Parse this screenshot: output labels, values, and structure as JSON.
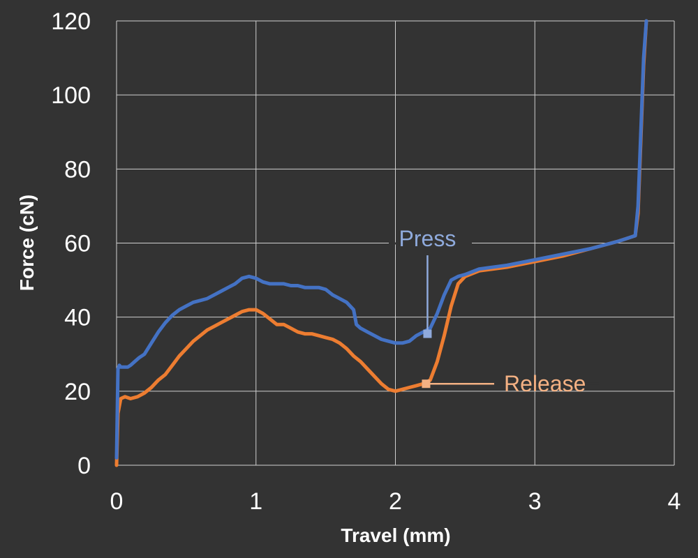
{
  "chart_data": {
    "type": "line",
    "title": "",
    "xlabel": "Travel (mm)",
    "ylabel": "Force (cN)",
    "xlim": [
      0,
      4
    ],
    "ylim": [
      0,
      120
    ],
    "xticks": [
      0,
      1,
      2,
      3,
      4
    ],
    "yticks": [
      0,
      20,
      40,
      60,
      80,
      100,
      120
    ],
    "grid": true,
    "background": "#333333",
    "series": [
      {
        "name": "Press",
        "color": "#4472C4",
        "x": [
          0,
          0.01,
          0.02,
          0.03,
          0.05,
          0.08,
          0.1,
          0.13,
          0.16,
          0.2,
          0.25,
          0.3,
          0.35,
          0.4,
          0.45,
          0.5,
          0.55,
          0.6,
          0.65,
          0.7,
          0.75,
          0.8,
          0.85,
          0.9,
          0.95,
          1.0,
          1.05,
          1.1,
          1.15,
          1.2,
          1.25,
          1.3,
          1.35,
          1.4,
          1.45,
          1.5,
          1.55,
          1.6,
          1.65,
          1.7,
          1.72,
          1.75,
          1.8,
          1.85,
          1.9,
          1.95,
          2.0,
          2.05,
          2.1,
          2.15,
          2.2,
          2.25,
          2.3,
          2.35,
          2.4,
          2.45,
          2.5,
          2.6,
          2.8,
          3.0,
          3.2,
          3.4,
          3.6,
          3.72,
          3.74,
          3.76,
          3.78,
          3.8
        ],
        "values": [
          2,
          26,
          27,
          26.5,
          26.5,
          26.5,
          27,
          28,
          29,
          30,
          33,
          36,
          38.5,
          40.5,
          42,
          43,
          44,
          44.5,
          45,
          46,
          47,
          48,
          49,
          50.5,
          51,
          50.5,
          49.5,
          49,
          49,
          49,
          48.5,
          48.5,
          48,
          48,
          48,
          47.5,
          46,
          45,
          44,
          42,
          38,
          37,
          36,
          35,
          34,
          33.5,
          33,
          33,
          33.5,
          35,
          36,
          37,
          41,
          46,
          50,
          51,
          51.5,
          53,
          54,
          55.5,
          57,
          58.5,
          60.5,
          62,
          70,
          90,
          110,
          120
        ]
      },
      {
        "name": "Release",
        "color": "#ED7D31",
        "x": [
          0,
          0.01,
          0.03,
          0.06,
          0.1,
          0.15,
          0.2,
          0.25,
          0.3,
          0.35,
          0.4,
          0.45,
          0.5,
          0.55,
          0.6,
          0.65,
          0.7,
          0.75,
          0.8,
          0.85,
          0.9,
          0.95,
          1.0,
          1.05,
          1.1,
          1.15,
          1.2,
          1.25,
          1.3,
          1.35,
          1.4,
          1.45,
          1.5,
          1.55,
          1.6,
          1.65,
          1.7,
          1.75,
          1.8,
          1.85,
          1.9,
          1.95,
          2.0,
          2.05,
          2.1,
          2.15,
          2.2,
          2.25,
          2.3,
          2.35,
          2.4,
          2.45,
          2.5,
          2.6,
          2.8,
          3.0,
          3.2,
          3.4,
          3.6,
          3.72,
          3.74,
          3.76,
          3.78,
          3.8
        ],
        "values": [
          0,
          14,
          18,
          18.5,
          18,
          18.5,
          19.5,
          21,
          23,
          24.5,
          27,
          29.5,
          31.5,
          33.5,
          35,
          36.5,
          37.5,
          38.5,
          39.5,
          40.5,
          41.5,
          42,
          42,
          41,
          39.5,
          38,
          38,
          37,
          36,
          35.5,
          35.5,
          35,
          34.5,
          34,
          33,
          31.5,
          29.5,
          28,
          26,
          24,
          22,
          20.5,
          20,
          20.5,
          21,
          21.5,
          22,
          23,
          28,
          35,
          43,
          49,
          51,
          52.5,
          53.5,
          55,
          56.5,
          58.5,
          60.5,
          62,
          68,
          88,
          108,
          120
        ]
      }
    ],
    "annotations": [
      {
        "label": "Press",
        "x": 2.23,
        "y": 35.5,
        "color": "#8FAADC"
      },
      {
        "label": "Release",
        "x": 2.22,
        "y": 22,
        "color": "#F4B183"
      }
    ]
  }
}
